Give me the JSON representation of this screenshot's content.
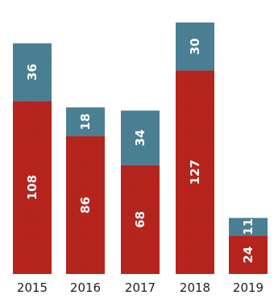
{
  "chart_data": {
    "type": "bar",
    "stacked": true,
    "orientation": "vertical",
    "categories": [
      "2015",
      "2016",
      "2017",
      "2018",
      "2019"
    ],
    "series": [
      {
        "values": [
          108,
          86,
          68,
          127,
          24
        ],
        "color": "#b5241c"
      },
      {
        "values": [
          36,
          18,
          34,
          30,
          11
        ],
        "color": "#4a7f94"
      }
    ],
    "data_labels": true,
    "data_label_rotation": "vertical",
    "grid": false,
    "legend": "none",
    "ylim": [
      0,
      165
    ]
  }
}
